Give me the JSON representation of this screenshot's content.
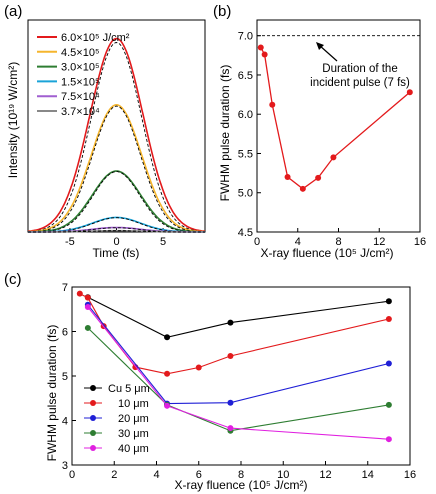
{
  "chart_data": [
    {
      "panel": "(a)",
      "type": "line",
      "xlabel": "Time (fs)",
      "ylabel": "Intensity (10¹⁹ W/cm²)",
      "xlim": [
        -9.5,
        9.5
      ],
      "ylim": [
        0,
        8.0
      ],
      "xticks": [
        "-5",
        "0",
        "5"
      ],
      "xtick_values": [
        -5,
        0,
        5
      ],
      "legend_position": "top-left",
      "series": [
        {
          "name": "6.0×10⁵ J/cm²",
          "color": "#e31a1c",
          "peak": 7.3,
          "sigma": 2.85,
          "dashed_peak": 7.15,
          "dashed_sigma": 2.7
        },
        {
          "name": "4.5×10⁵",
          "color": "#f5b52d",
          "peak": 4.8,
          "sigma": 2.7,
          "dashed_peak": 4.75,
          "dashed_sigma": 2.6
        },
        {
          "name": "3.0×10⁵",
          "color": "#2e7d32",
          "peak": 2.3,
          "sigma": 2.6,
          "dashed_peak": 2.28,
          "dashed_sigma": 2.5
        },
        {
          "name": "1.5×10⁵",
          "color": "#1aa3d8",
          "peak": 0.55,
          "sigma": 2.6,
          "dashed_peak": 0.54,
          "dashed_sigma": 2.5
        },
        {
          "name": "7.5×10⁴",
          "color": "#a05fd0",
          "peak": 0.17,
          "sigma": 2.6,
          "dashed_peak": 0.16,
          "dashed_sigma": 2.5
        },
        {
          "name": "3.7×10⁴",
          "color": "#888888",
          "peak": 0.05,
          "sigma": 2.6,
          "dashed_peak": 0.05,
          "dashed_sigma": 2.5
        }
      ]
    },
    {
      "panel": "(b)",
      "type": "line",
      "xlabel": "X-ray fluence (10⁵ J/cm²)",
      "ylabel": "FWHM pulse duration (fs)",
      "xlim": [
        0,
        16
      ],
      "ylim": [
        4.5,
        7.2
      ],
      "xticks": [
        0,
        4,
        8,
        12,
        16
      ],
      "yticks": [
        4.5,
        5.0,
        5.5,
        6.0,
        6.5,
        7.0
      ],
      "ytick_labels": [
        "4.5",
        "5.0",
        "5.5",
        "6.0",
        "6.5",
        "7.0"
      ],
      "reference_line": {
        "y": 7.0,
        "style": "dashed"
      },
      "annotation": "Duration of the\nincident pulse (7 fs)",
      "series": [
        {
          "color": "#e31a1c",
          "x": [
            0.37,
            0.75,
            1.5,
            3.0,
            4.5,
            6.0,
            7.5,
            15.0
          ],
          "y": [
            6.85,
            6.76,
            6.12,
            5.2,
            5.05,
            5.19,
            5.45,
            6.28
          ]
        }
      ]
    },
    {
      "panel": "(c)",
      "type": "line",
      "xlabel": "X-ray fluence (10⁵ J/cm²)",
      "ylabel": "FWHM pulse duration (fs)",
      "xlim": [
        0,
        16
      ],
      "ylim": [
        3.0,
        7.0
      ],
      "xticks": [
        0,
        2,
        4,
        6,
        8,
        10,
        12,
        14,
        16
      ],
      "yticks": [
        3,
        4,
        5,
        6,
        7
      ],
      "legend_position": "bottom-left",
      "series": [
        {
          "name": "Cu 5 μm",
          "color": "#000000",
          "x": [
            0.75,
            4.5,
            7.5,
            15.0
          ],
          "y": [
            6.77,
            5.87,
            6.2,
            6.68
          ]
        },
        {
          "name": "10 μm",
          "color": "#e31a1c",
          "x": [
            0.37,
            0.75,
            1.5,
            3.0,
            4.5,
            6.0,
            7.5,
            15.0
          ],
          "y": [
            6.85,
            6.76,
            6.12,
            5.2,
            5.05,
            5.19,
            5.45,
            6.28
          ]
        },
        {
          "name": "20 μm",
          "color": "#1f1fd6",
          "x": [
            0.75,
            4.5,
            7.5,
            15.0
          ],
          "y": [
            6.6,
            4.38,
            4.4,
            5.28
          ]
        },
        {
          "name": "30 μm",
          "color": "#2e7d32",
          "x": [
            0.75,
            4.5,
            7.5,
            15.0
          ],
          "y": [
            6.08,
            4.35,
            3.77,
            4.35
          ]
        },
        {
          "name": "40 μm",
          "color": "#e020e0",
          "x": [
            0.75,
            4.5,
            7.5,
            15.0
          ],
          "y": [
            6.55,
            4.33,
            3.83,
            3.58
          ]
        }
      ]
    }
  ]
}
